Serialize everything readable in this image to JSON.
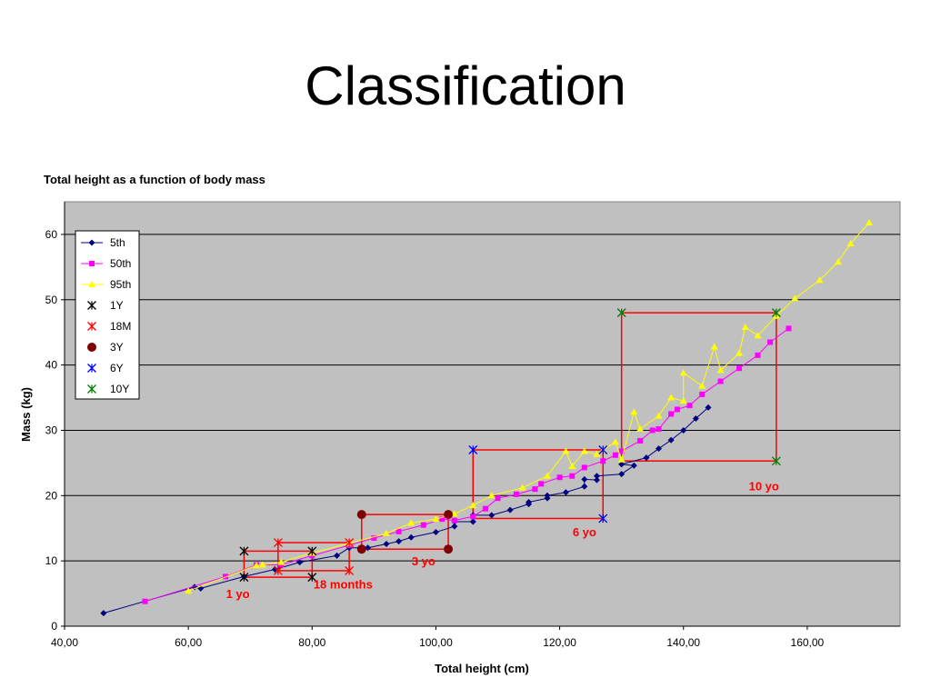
{
  "slide": {
    "title": "Classification"
  },
  "chart_data": {
    "type": "scatter",
    "title": "Total height as a function of body mass",
    "xlabel": "Total height (cm)",
    "ylabel": "Mass (kg)",
    "xlim": [
      40,
      175
    ],
    "ylim": [
      0,
      65
    ],
    "x_ticks": [
      40,
      60,
      80,
      100,
      120,
      140,
      160
    ],
    "x_tick_labels": [
      "40,00",
      "60,00",
      "80,00",
      "100,00",
      "120,00",
      "140,00",
      "160,00"
    ],
    "y_ticks": [
      0,
      10,
      20,
      30,
      40,
      50,
      60
    ],
    "y_tick_labels": [
      "0",
      "10",
      "20",
      "30",
      "40",
      "50",
      "60"
    ],
    "grid": "horizontal",
    "legend_position": "top-left",
    "plot_background": "#c0c0c0",
    "series": [
      {
        "name": "5th",
        "color": "#000080",
        "marker": "diamond",
        "line": true,
        "points": [
          [
            46.3,
            2.0
          ],
          [
            61,
            6
          ],
          [
            62,
            5.8
          ],
          [
            69,
            7.6
          ],
          [
            74,
            8.7
          ],
          [
            78,
            9.8
          ],
          [
            84,
            10.8
          ],
          [
            86,
            12.0
          ],
          [
            89,
            12.0
          ],
          [
            92,
            12.6
          ],
          [
            94,
            13.0
          ],
          [
            96,
            13.6
          ],
          [
            100,
            14.4
          ],
          [
            103,
            15.3
          ],
          [
            103,
            16.0
          ],
          [
            106,
            16.0
          ],
          [
            106,
            17.0
          ],
          [
            109,
            17.0
          ],
          [
            112,
            17.8
          ],
          [
            115,
            18.7
          ],
          [
            115,
            19.0
          ],
          [
            118,
            19.6
          ],
          [
            118,
            20.0
          ],
          [
            121,
            20.5
          ],
          [
            124,
            21.4
          ],
          [
            124,
            22.5
          ],
          [
            126,
            22.4
          ],
          [
            126,
            23.0
          ],
          [
            130,
            23.3
          ],
          [
            132,
            24.6
          ],
          [
            130,
            24.8
          ],
          [
            134,
            25.8
          ],
          [
            136,
            27.2
          ],
          [
            138,
            28.5
          ],
          [
            140,
            30.0
          ],
          [
            142,
            31.8
          ],
          [
            144,
            33.5
          ]
        ]
      },
      {
        "name": "50th",
        "color": "#ff00ff",
        "marker": "square",
        "line": true,
        "points": [
          [
            53,
            3.8
          ],
          [
            66,
            7.6
          ],
          [
            71,
            9.4
          ],
          [
            75,
            9.4
          ],
          [
            80,
            10.8
          ],
          [
            86,
            12.4
          ],
          [
            90,
            13.5
          ],
          [
            94,
            14.5
          ],
          [
            98,
            15.5
          ],
          [
            101,
            16.4
          ],
          [
            103,
            16.2
          ],
          [
            106,
            16.8
          ],
          [
            108,
            18.0
          ],
          [
            110,
            19.6
          ],
          [
            113,
            20.2
          ],
          [
            116,
            21.0
          ],
          [
            117,
            21.8
          ],
          [
            120,
            22.8
          ],
          [
            122,
            23.0
          ],
          [
            124,
            24.3
          ],
          [
            127,
            25.3
          ],
          [
            129,
            26.2
          ],
          [
            130,
            26.8
          ],
          [
            133,
            28.4
          ],
          [
            135,
            30.0
          ],
          [
            136,
            30.2
          ],
          [
            138,
            32.5
          ],
          [
            139,
            33.2
          ],
          [
            141,
            33.8
          ],
          [
            143,
            35.5
          ],
          [
            146,
            37.5
          ],
          [
            149,
            39.5
          ],
          [
            152,
            41.5
          ],
          [
            154,
            43.5
          ],
          [
            157,
            45.6
          ]
        ]
      },
      {
        "name": "95th",
        "color": "#ffff00",
        "marker": "triangle",
        "line": true,
        "points": [
          [
            60,
            5.4
          ],
          [
            71,
            9.3
          ],
          [
            72,
            9.4
          ],
          [
            75,
            9.8
          ],
          [
            80,
            11.2
          ],
          [
            86,
            12.7
          ],
          [
            92,
            14.2
          ],
          [
            96,
            15.8
          ],
          [
            100,
            16.4
          ],
          [
            103,
            17.2
          ],
          [
            106,
            18.5
          ],
          [
            109,
            20.0
          ],
          [
            114,
            21.2
          ],
          [
            118,
            23.0
          ],
          [
            121,
            26.8
          ],
          [
            122,
            24.5
          ],
          [
            124,
            26.8
          ],
          [
            126,
            26.3
          ],
          [
            127,
            27.0
          ],
          [
            129,
            28.2
          ],
          [
            130,
            25.5
          ],
          [
            132,
            32.8
          ],
          [
            133,
            30.2
          ],
          [
            136,
            32.2
          ],
          [
            138,
            35.0
          ],
          [
            140,
            34.5
          ],
          [
            140,
            38.8
          ],
          [
            143,
            36.8
          ],
          [
            145,
            42.8
          ],
          [
            146,
            39.2
          ],
          [
            149,
            41.8
          ],
          [
            150,
            45.8
          ],
          [
            152,
            44.5
          ],
          [
            155,
            47.5
          ],
          [
            158,
            50.2
          ],
          [
            162,
            53.0
          ],
          [
            165,
            55.8
          ],
          [
            167,
            58.6
          ],
          [
            170,
            61.8
          ]
        ]
      },
      {
        "name": "1Y",
        "color": "#000000",
        "marker": "star",
        "line": false,
        "points": [
          [
            69,
            11.5
          ],
          [
            69,
            7.5
          ],
          [
            80,
            11.5
          ],
          [
            80,
            7.5
          ]
        ]
      },
      {
        "name": "18M",
        "color": "#ff0000",
        "marker": "star",
        "line": false,
        "points": [
          [
            74.5,
            12.8
          ],
          [
            74.5,
            8.5
          ],
          [
            86,
            12.8
          ],
          [
            86,
            8.5
          ]
        ]
      },
      {
        "name": "3Y",
        "color": "#800000",
        "marker": "circle",
        "line": false,
        "points": [
          [
            88,
            17.1
          ],
          [
            88,
            11.8
          ],
          [
            102,
            17.1
          ],
          [
            102,
            11.8
          ]
        ]
      },
      {
        "name": "6Y",
        "color": "#0000ff",
        "marker": "star",
        "line": false,
        "points": [
          [
            106,
            27.0
          ],
          [
            127,
            27.0
          ],
          [
            127,
            16.5
          ]
        ]
      },
      {
        "name": "10Y",
        "color": "#008000",
        "marker": "star",
        "line": false,
        "points": [
          [
            130,
            48.0
          ],
          [
            155,
            48.0
          ],
          [
            155,
            25.3
          ]
        ]
      }
    ],
    "annotations": [
      {
        "text": "1 yo",
        "x": 68,
        "y": 4.3
      },
      {
        "text": "18 months",
        "x": 85,
        "y": 5.8
      },
      {
        "text": "3 yo",
        "x": 98,
        "y": 9.3
      },
      {
        "text": "6 yo",
        "x": 124,
        "y": 13.8
      },
      {
        "text": "10 yo",
        "x": 153,
        "y": 20.8
      }
    ],
    "boxes": [
      {
        "x0": 69,
        "x1": 80,
        "y0": 7.5,
        "y1": 11.5
      },
      {
        "x0": 74.5,
        "x1": 86,
        "y0": 8.5,
        "y1": 12.8
      },
      {
        "x0": 88,
        "x1": 102,
        "y0": 11.8,
        "y1": 17.1
      },
      {
        "x0": 106,
        "x1": 127,
        "y0": 16.5,
        "y1": 27.0
      },
      {
        "x0": 130,
        "x1": 155,
        "y0": 25.3,
        "y1": 48.0
      }
    ],
    "box_color": "#ff0000",
    "annotation_color": "#ff0000"
  }
}
